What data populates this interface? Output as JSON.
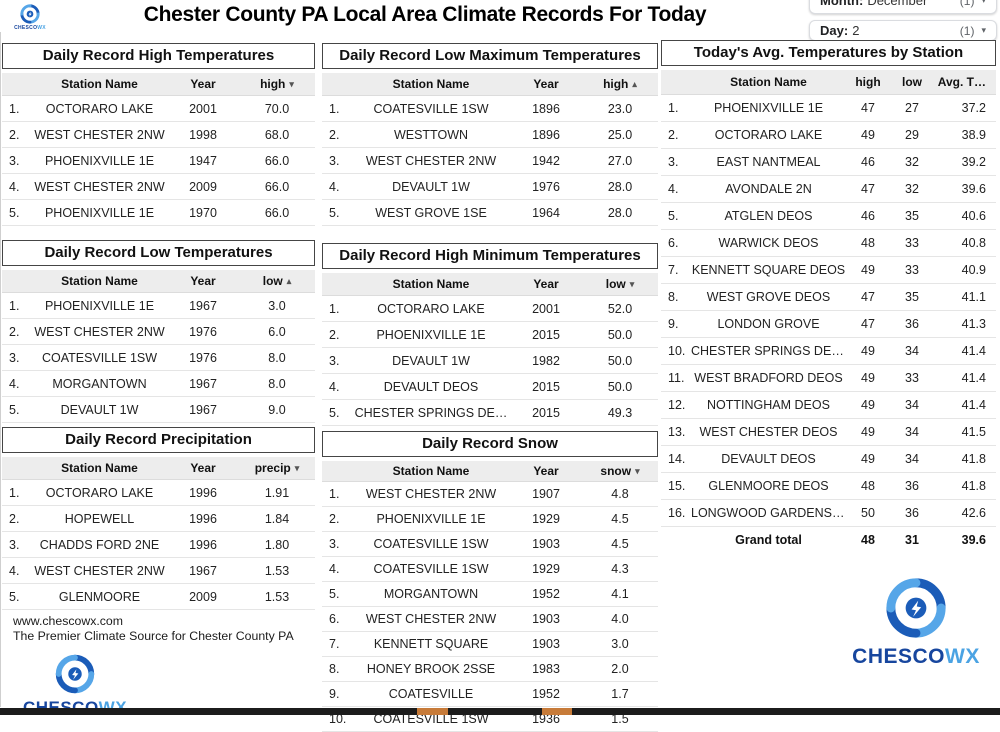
{
  "header": {
    "title": "Chester County PA Local Area Climate Records For Today",
    "filters": [
      {
        "label": "Month:",
        "value": "December",
        "count": "(1)",
        "caret": "▾"
      },
      {
        "label": "Day:",
        "value": "2",
        "count": "(1)",
        "caret": "▾"
      }
    ]
  },
  "tables": {
    "record_high": {
      "title": "Daily Record High Temperatures",
      "columns": [
        "Station Name",
        "Year",
        "high"
      ],
      "sort_arrow": "▾",
      "rows": [
        [
          "OCTORARO LAKE",
          "2001",
          "70.0"
        ],
        [
          "WEST CHESTER 2NW",
          "1998",
          "68.0"
        ],
        [
          "PHOENIXVILLE 1E",
          "1947",
          "66.0"
        ],
        [
          "WEST CHESTER 2NW",
          "2009",
          "66.0"
        ],
        [
          "PHOENIXVILLE 1E",
          "1970",
          "66.0"
        ]
      ]
    },
    "record_low": {
      "title": "Daily Record Low Temperatures",
      "columns": [
        "Station Name",
        "Year",
        "low"
      ],
      "sort_arrow": "▴",
      "rows": [
        [
          "PHOENIXVILLE 1E",
          "1967",
          "3.0"
        ],
        [
          "WEST CHESTER 2NW",
          "1976",
          "6.0"
        ],
        [
          "COATESVILLE 1SW",
          "1976",
          "8.0"
        ],
        [
          "MORGANTOWN",
          "1967",
          "8.0"
        ],
        [
          "DEVAULT 1W",
          "1967",
          "9.0"
        ]
      ]
    },
    "record_precip": {
      "title": "Daily Record Precipitation",
      "columns": [
        "Station Name",
        "Year",
        "precip"
      ],
      "sort_arrow": "▾",
      "rows": [
        [
          "OCTORARO LAKE",
          "1996",
          "1.91"
        ],
        [
          "HOPEWELL",
          "1996",
          "1.84"
        ],
        [
          "CHADDS FORD 2NE",
          "1996",
          "1.80"
        ],
        [
          "WEST CHESTER 2NW",
          "1967",
          "1.53"
        ],
        [
          "GLENMOORE",
          "2009",
          "1.53"
        ]
      ]
    },
    "record_low_max": {
      "title": "Daily Record Low Maximum Temperatures",
      "columns": [
        "Station Name",
        "Year",
        "high"
      ],
      "sort_arrow": "▴",
      "rows": [
        [
          "COATESVILLE 1SW",
          "1896",
          "23.0"
        ],
        [
          "WESTTOWN",
          "1896",
          "25.0"
        ],
        [
          "WEST CHESTER 2NW",
          "1942",
          "27.0"
        ],
        [
          "DEVAULT 1W",
          "1976",
          "28.0"
        ],
        [
          "WEST GROVE 1SE",
          "1964",
          "28.0"
        ]
      ]
    },
    "record_high_min": {
      "title": "Daily Record High Minimum Temperatures",
      "columns": [
        "Station Name",
        "Year",
        "low"
      ],
      "sort_arrow": "▾",
      "rows": [
        [
          "OCTORARO LAKE",
          "2001",
          "52.0"
        ],
        [
          "PHOENIXVILLE 1E",
          "2015",
          "50.0"
        ],
        [
          "DEVAULT 1W",
          "1982",
          "50.0"
        ],
        [
          "DEVAULT DEOS",
          "2015",
          "50.0"
        ],
        [
          "CHESTER SPRINGS DE…",
          "2015",
          "49.3"
        ]
      ]
    },
    "record_snow": {
      "title": "Daily Record Snow",
      "columns": [
        "Station Name",
        "Year",
        "snow"
      ],
      "sort_arrow": "▾",
      "rows": [
        [
          "WEST CHESTER 2NW",
          "1907",
          "4.8"
        ],
        [
          "PHOENIXVILLE 1E",
          "1929",
          "4.5"
        ],
        [
          "COATESVILLE 1SW",
          "1903",
          "4.5"
        ],
        [
          "COATESVILLE 1SW",
          "1929",
          "4.3"
        ],
        [
          "MORGANTOWN",
          "1952",
          "4.1"
        ],
        [
          "WEST CHESTER 2NW",
          "1903",
          "4.0"
        ],
        [
          "KENNETT SQUARE",
          "1903",
          "3.0"
        ],
        [
          "HONEY BROOK 2SSE",
          "1983",
          "2.0"
        ],
        [
          "COATESVILLE",
          "1952",
          "1.7"
        ],
        [
          "COATESVILLE 1SW",
          "1936",
          "1.5"
        ]
      ]
    },
    "avg_temps": {
      "title": "Today's Avg. Temperatures by Station",
      "columns": [
        "Station Name",
        "high",
        "low",
        "Avg. T…"
      ],
      "rows": [
        [
          "PHOENIXVILLE 1E",
          "47",
          "27",
          "37.2"
        ],
        [
          "OCTORARO LAKE",
          "49",
          "29",
          "38.9"
        ],
        [
          "EAST NANTMEAL",
          "46",
          "32",
          "39.2"
        ],
        [
          "AVONDALE 2N",
          "47",
          "32",
          "39.6"
        ],
        [
          "ATGLEN DEOS",
          "46",
          "35",
          "40.6"
        ],
        [
          "WARWICK DEOS",
          "48",
          "33",
          "40.8"
        ],
        [
          "KENNETT SQUARE DEOS",
          "49",
          "33",
          "40.9"
        ],
        [
          "WEST GROVE DEOS",
          "47",
          "35",
          "41.1"
        ],
        [
          "LONDON GROVE",
          "47",
          "36",
          "41.3"
        ],
        [
          "CHESTER SPRINGS DEOS",
          "49",
          "34",
          "41.4"
        ],
        [
          "WEST BRADFORD DEOS",
          "49",
          "33",
          "41.4"
        ],
        [
          "NOTTINGHAM DEOS",
          "49",
          "34",
          "41.4"
        ],
        [
          "WEST CHESTER DEOS",
          "49",
          "34",
          "41.5"
        ],
        [
          "DEVAULT DEOS",
          "49",
          "34",
          "41.8"
        ],
        [
          "GLENMOORE DEOS",
          "48",
          "36",
          "41.8"
        ],
        [
          "LONGWOOD GARDENS DEOS",
          "50",
          "36",
          "42.6"
        ]
      ],
      "grand_total": {
        "label": "Grand total",
        "high": "48",
        "low": "31",
        "avg": "39.6"
      }
    }
  },
  "footer": {
    "url": "www.chescowx.com",
    "tagline": "The Premier Climate Source for Chester County PA",
    "logo_primary": "CHESCO",
    "logo_secondary": "WX"
  },
  "colors": {
    "logo_dark_blue": "#1b5cb8",
    "logo_light_blue": "#56a6e8",
    "table_header_gray": "#ededed",
    "scroll_thumb_orange": "#c77b39",
    "bottom_bar_dark": "#1c1c1c"
  }
}
